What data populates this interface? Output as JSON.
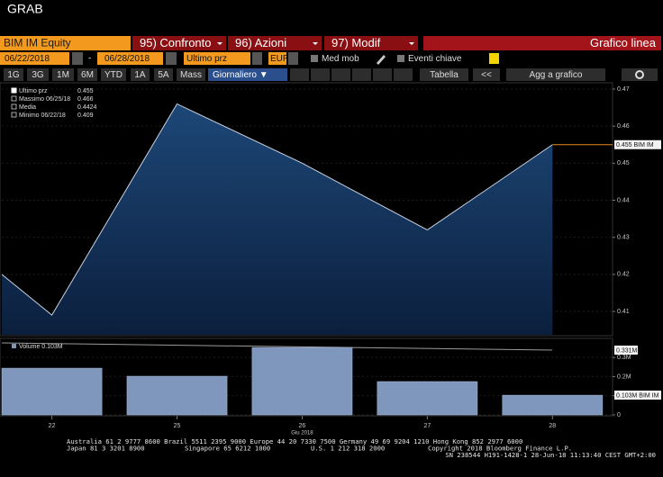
{
  "header": {
    "title": "GRAB"
  },
  "toolbar": {
    "security": "BIM IM Equity",
    "tabs": [
      "95) Confronto",
      "96) Azioni",
      "97) Modif"
    ],
    "chart_kind": "Grafico linea",
    "start_date": "06/22/2018",
    "date_separator": "-",
    "end_date": "06/28/2018",
    "field": "Ultimo prz",
    "currency": "EUR",
    "options": [
      "Med mob",
      "Eventi chiave"
    ],
    "periods": [
      "1G",
      "3G",
      "1M",
      "6M",
      "YTD",
      "1A",
      "5A",
      "Mass"
    ],
    "frequency": "Giornaliero ▼",
    "buttons": [
      "Tabella",
      "<<",
      "Agg a grafico"
    ]
  },
  "chart_data": [
    {
      "type": "area",
      "legend": [
        {
          "label": "Ultimo prz",
          "value": "0.455"
        },
        {
          "label": "Massimo 06/25/18",
          "value": "0.466"
        },
        {
          "label": "Media",
          "value": "0.4424"
        },
        {
          "label": "Minimo 06/22/18",
          "value": "0.409"
        }
      ],
      "x": [
        -0.4,
        0,
        1,
        2,
        3,
        4
      ],
      "xlim": [
        -0.4,
        4.48
      ],
      "series": [
        {
          "color": "#c9d2e3",
          "values": [
            0.42,
            0.409,
            0.466,
            0.45,
            0.432,
            0.455
          ]
        }
      ],
      "ylim": [
        0.4037,
        0.4717
      ],
      "yticks": [
        0.41,
        0.42,
        0.43,
        0.44,
        0.45,
        0.46,
        0.47
      ],
      "last_label": "0.455 BIM IM",
      "last_color": "#e8891c"
    },
    {
      "type": "bar",
      "legend": "Volume 0.103M",
      "x": [
        0,
        1,
        2,
        3,
        4
      ],
      "xlim": [
        -0.4,
        4.48
      ],
      "xticks": [
        {
          "value": 0,
          "label": "22"
        },
        {
          "value": 1,
          "label": "25"
        },
        {
          "value": 2,
          "label": "26"
        },
        {
          "value": 3,
          "label": "27"
        },
        {
          "value": 4,
          "label": "28"
        }
      ],
      "x_label": "Giu 2018",
      "values": [
        0.244,
        0.202,
        0.352,
        0.174,
        0.103
      ],
      "color": "#7f97bd",
      "ylim": [
        0,
        0.39
      ],
      "yticks": [
        {
          "value": 0,
          "label": "0"
        },
        {
          "value": 0.1,
          "label": "0.1M"
        },
        {
          "value": 0.2,
          "label": "0.2M"
        },
        {
          "value": 0.3,
          "label": "0.3M"
        }
      ],
      "annotations": [
        "0.331M",
        "0.103M BIM IM"
      ]
    }
  ],
  "footer": {
    "line1": "Australia 61 2 9777 8600 Brazil 5511 2395 9000 Europe 44 20 7330 7500 Germany 49 69 9204 1210 Hong Kong 852 2977 6000",
    "line2": [
      "Japan 81 3 3201 8900",
      "Singapore 65 6212 1000",
      "U.S. 1 212 318 2000",
      "Copyright 2018 Bloomberg Finance L.P."
    ],
    "line3": "SN 238544 H191-1428-1 28-Jun-18 11:13:40 CEST GMT+2:00"
  }
}
